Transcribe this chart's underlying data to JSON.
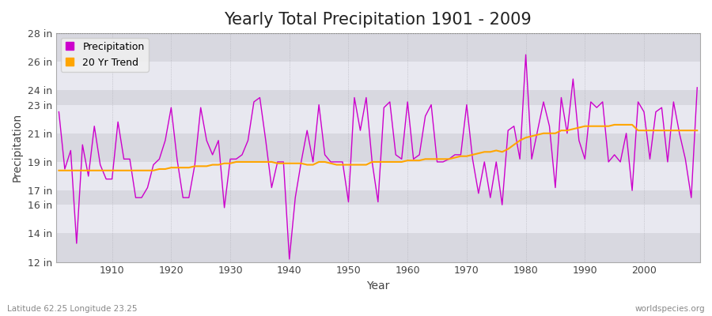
{
  "title": "Yearly Total Precipitation 1901 - 2009",
  "xlabel": "Year",
  "ylabel": "Precipitation",
  "background_color": "#ffffff",
  "plot_bg_color": "#e8e8ec",
  "band_color_light": "#dcdce4",
  "band_color_dark": "#e8e8f0",
  "precip_color": "#cc00cc",
  "trend_color": "#FFA500",
  "years": [
    1901,
    1902,
    1903,
    1904,
    1905,
    1906,
    1907,
    1908,
    1909,
    1910,
    1911,
    1912,
    1913,
    1914,
    1915,
    1916,
    1917,
    1918,
    1919,
    1920,
    1921,
    1922,
    1923,
    1924,
    1925,
    1926,
    1927,
    1928,
    1929,
    1930,
    1931,
    1932,
    1933,
    1934,
    1935,
    1936,
    1937,
    1938,
    1939,
    1940,
    1941,
    1942,
    1943,
    1944,
    1945,
    1946,
    1947,
    1948,
    1949,
    1950,
    1951,
    1952,
    1953,
    1954,
    1955,
    1956,
    1957,
    1958,
    1959,
    1960,
    1961,
    1962,
    1963,
    1964,
    1965,
    1966,
    1967,
    1968,
    1969,
    1970,
    1971,
    1972,
    1973,
    1974,
    1975,
    1976,
    1977,
    1978,
    1979,
    1980,
    1981,
    1982,
    1983,
    1984,
    1985,
    1986,
    1987,
    1988,
    1989,
    1990,
    1991,
    1992,
    1993,
    1994,
    1995,
    1996,
    1997,
    1998,
    1999,
    2000,
    2001,
    2002,
    2003,
    2004,
    2005,
    2006,
    2007,
    2008,
    2009
  ],
  "precip": [
    22.5,
    18.5,
    19.8,
    13.3,
    20.2,
    18.0,
    21.5,
    18.8,
    17.8,
    17.8,
    21.8,
    19.2,
    19.2,
    16.5,
    16.5,
    17.2,
    18.8,
    19.2,
    20.5,
    22.8,
    19.2,
    16.5,
    16.5,
    18.8,
    22.8,
    20.5,
    19.5,
    20.5,
    15.8,
    19.2,
    19.2,
    19.5,
    20.5,
    23.2,
    23.5,
    20.5,
    17.2,
    19.0,
    19.0,
    12.2,
    16.5,
    19.0,
    21.2,
    19.0,
    23.0,
    19.5,
    19.0,
    19.0,
    19.0,
    16.2,
    23.5,
    21.2,
    23.5,
    19.0,
    16.2,
    22.8,
    23.2,
    19.5,
    19.2,
    23.2,
    19.2,
    19.5,
    22.2,
    23.0,
    19.0,
    19.0,
    19.2,
    19.5,
    19.5,
    23.0,
    19.2,
    16.8,
    19.0,
    16.5,
    19.0,
    16.0,
    21.2,
    21.5,
    19.2,
    26.5,
    19.2,
    21.2,
    23.2,
    21.5,
    17.2,
    23.5,
    21.0,
    24.8,
    20.5,
    19.2,
    23.2,
    22.8,
    23.2,
    19.0,
    19.5,
    19.0,
    21.0,
    17.0,
    23.2,
    22.5,
    19.2,
    22.5,
    22.8,
    19.0,
    23.2,
    21.0,
    19.2,
    16.5,
    24.2
  ],
  "trend": [
    18.4,
    18.4,
    18.4,
    18.4,
    18.4,
    18.4,
    18.4,
    18.4,
    18.4,
    18.4,
    18.4,
    18.4,
    18.4,
    18.4,
    18.4,
    18.4,
    18.4,
    18.5,
    18.5,
    18.6,
    18.6,
    18.6,
    18.6,
    18.7,
    18.7,
    18.7,
    18.8,
    18.8,
    18.9,
    18.9,
    19.0,
    19.0,
    19.0,
    19.0,
    19.0,
    19.0,
    19.0,
    18.9,
    18.9,
    18.9,
    18.9,
    18.9,
    18.8,
    18.8,
    19.0,
    19.0,
    18.9,
    18.8,
    18.8,
    18.8,
    18.8,
    18.8,
    18.8,
    19.0,
    19.0,
    19.0,
    19.0,
    19.0,
    19.0,
    19.1,
    19.1,
    19.1,
    19.2,
    19.2,
    19.2,
    19.2,
    19.2,
    19.3,
    19.4,
    19.4,
    19.5,
    19.6,
    19.7,
    19.7,
    19.8,
    19.7,
    19.9,
    20.2,
    20.5,
    20.7,
    20.8,
    20.9,
    21.0,
    21.0,
    21.0,
    21.2,
    21.2,
    21.3,
    21.4,
    21.5,
    21.5,
    21.5,
    21.5,
    21.5,
    21.6,
    21.6,
    21.6,
    21.6,
    21.2,
    21.2,
    21.2,
    21.2,
    21.2,
    21.2,
    21.2,
    21.2,
    21.2,
    21.2,
    21.2
  ],
  "ylim": [
    12,
    28
  ],
  "yticks": [
    12,
    14,
    16,
    17,
    19,
    21,
    23,
    24,
    26,
    28
  ],
  "ytick_labels": [
    "12 in",
    "14 in",
    "16 in",
    "17 in",
    "19 in",
    "21 in",
    "23 in",
    "24 in",
    "26 in",
    "28 in"
  ],
  "xlim": [
    1901,
    2009
  ],
  "xticks": [
    1910,
    1920,
    1930,
    1940,
    1950,
    1960,
    1970,
    1980,
    1990,
    2000
  ],
  "footer_left": "Latitude 62.25 Longitude 23.25",
  "footer_right": "worldspecies.org",
  "title_fontsize": 15,
  "axis_fontsize": 9,
  "legend_fontsize": 9
}
